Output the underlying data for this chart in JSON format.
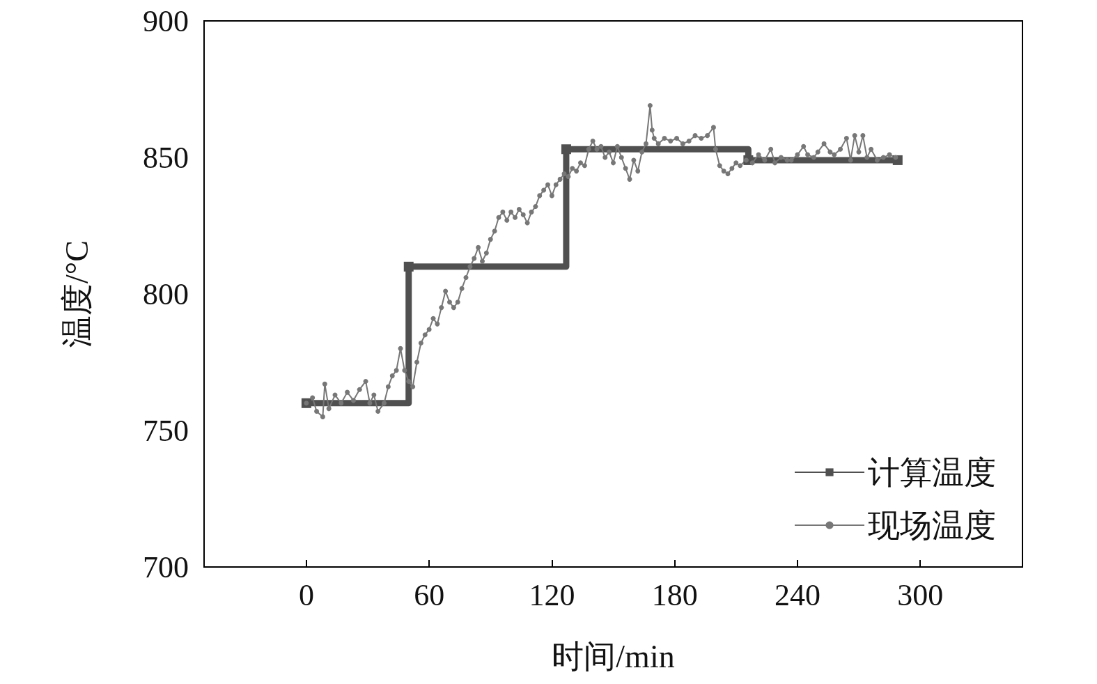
{
  "chart_data": {
    "type": "line",
    "xlabel": "时间/min",
    "ylabel": "温度/°C",
    "xlim": [
      -50,
      350
    ],
    "xticks": [
      0,
      60,
      120,
      180,
      240,
      300
    ],
    "ylim": [
      700,
      900
    ],
    "yticks": [
      700,
      750,
      800,
      850,
      900
    ],
    "grid": false,
    "legend": "bottom right",
    "series": [
      {
        "name": "计算温度",
        "type": "step",
        "color": "#505050",
        "marker": "square",
        "x": [
          0,
          50,
          127,
          216,
          289
        ],
        "values": [
          760,
          810,
          853,
          849,
          849
        ]
      },
      {
        "name": "现场温度",
        "color": "#777777",
        "marker": "circle",
        "x": [
          0,
          3,
          5,
          8,
          9,
          11,
          14,
          17,
          20,
          23,
          26,
          29,
          31,
          33,
          35,
          38,
          40,
          42,
          44,
          46,
          48,
          50,
          52,
          54,
          56,
          58,
          60,
          62,
          64,
          66,
          68,
          70,
          72,
          74,
          76,
          78,
          80,
          82,
          84,
          86,
          88,
          90,
          92,
          94,
          96,
          98,
          100,
          102,
          104,
          106,
          108,
          110,
          112,
          114,
          116,
          118,
          120,
          122,
          124,
          126,
          128,
          130,
          132,
          134,
          136,
          138,
          140,
          142,
          144,
          146,
          148,
          150,
          152,
          154,
          156,
          158,
          160,
          162,
          164,
          166,
          168,
          169,
          170,
          172,
          175,
          178,
          181,
          184,
          187,
          190,
          193,
          196,
          199,
          200,
          202,
          204,
          206,
          208,
          210,
          212,
          215,
          218,
          221,
          224,
          227,
          229,
          232,
          235,
          237,
          240,
          243,
          245,
          248,
          250,
          253,
          256,
          258,
          261,
          264,
          266,
          268,
          270,
          272,
          274,
          276,
          279,
          282,
          285,
          288
        ],
        "values": [
          760,
          762,
          757,
          755,
          767,
          758,
          763,
          760,
          764,
          761,
          765,
          768,
          760,
          763,
          757,
          760,
          766,
          770,
          772,
          780,
          772,
          768,
          766,
          775,
          782,
          785,
          787,
          791,
          789,
          795,
          801,
          797,
          795,
          797,
          802,
          806,
          810,
          813,
          817,
          812,
          815,
          820,
          823,
          828,
          830,
          827,
          830,
          828,
          831,
          829,
          826,
          830,
          832,
          836,
          838,
          840,
          836,
          840,
          842,
          844,
          843,
          846,
          845,
          848,
          847,
          853,
          856,
          853,
          854,
          850,
          852,
          848,
          854,
          850,
          846,
          842,
          849,
          845,
          852,
          855,
          869,
          860,
          857,
          855,
          857,
          856,
          857,
          855,
          856,
          858,
          857,
          858,
          861,
          853,
          847,
          845,
          844,
          846,
          848,
          847,
          849,
          848,
          851,
          849,
          853,
          848,
          850,
          849,
          849,
          851,
          854,
          851,
          850,
          852,
          855,
          852,
          851,
          853,
          857,
          849,
          858,
          852,
          858,
          850,
          853,
          849,
          850,
          851,
          850
        ]
      }
    ]
  }
}
